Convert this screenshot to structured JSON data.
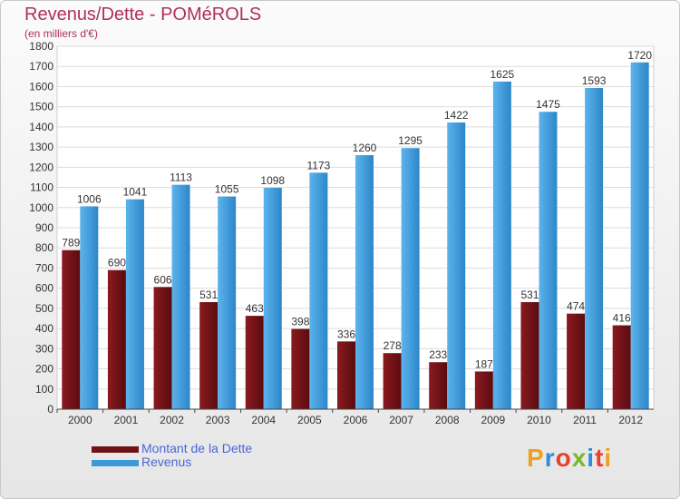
{
  "title": "Revenus/Dette - POMéROLS",
  "subtitle": "(en milliers d'€)",
  "legend": {
    "debt_label": "Montant de la Dette",
    "revenue_label": "Revenus"
  },
  "logo": {
    "letters": [
      "P",
      "r",
      "o",
      "x",
      "i",
      "t",
      "i"
    ]
  },
  "colors": {
    "debt": "#6e1216",
    "revenue": "#3d9ad8",
    "title": "#b0305a",
    "legend_text": "#4a64d8",
    "logo": [
      "#f0a020",
      "#2a8fd6",
      "#e8402a",
      "#7ab82a",
      "#2a8fd6",
      "#e8402a",
      "#f0a020"
    ]
  },
  "chart_data": {
    "type": "bar",
    "categories": [
      "2000",
      "2001",
      "2002",
      "2003",
      "2004",
      "2005",
      "2006",
      "2007",
      "2008",
      "2009",
      "2010",
      "2011",
      "2012"
    ],
    "series": [
      {
        "name": "Montant de la Dette",
        "values": [
          789,
          690,
          606,
          531,
          463,
          398,
          336,
          278,
          233,
          187,
          531,
          474,
          416
        ]
      },
      {
        "name": "Revenus",
        "values": [
          1006,
          1041,
          1113,
          1055,
          1098,
          1173,
          1260,
          1295,
          1422,
          1625,
          1475,
          1593,
          1720
        ]
      }
    ],
    "ylim": [
      0,
      1800
    ],
    "yticks": [
      0,
      100,
      200,
      300,
      400,
      500,
      600,
      700,
      800,
      900,
      1000,
      1100,
      1200,
      1300,
      1400,
      1500,
      1600,
      1700,
      1800
    ],
    "grid": true,
    "legend_position": "bottom-left"
  }
}
